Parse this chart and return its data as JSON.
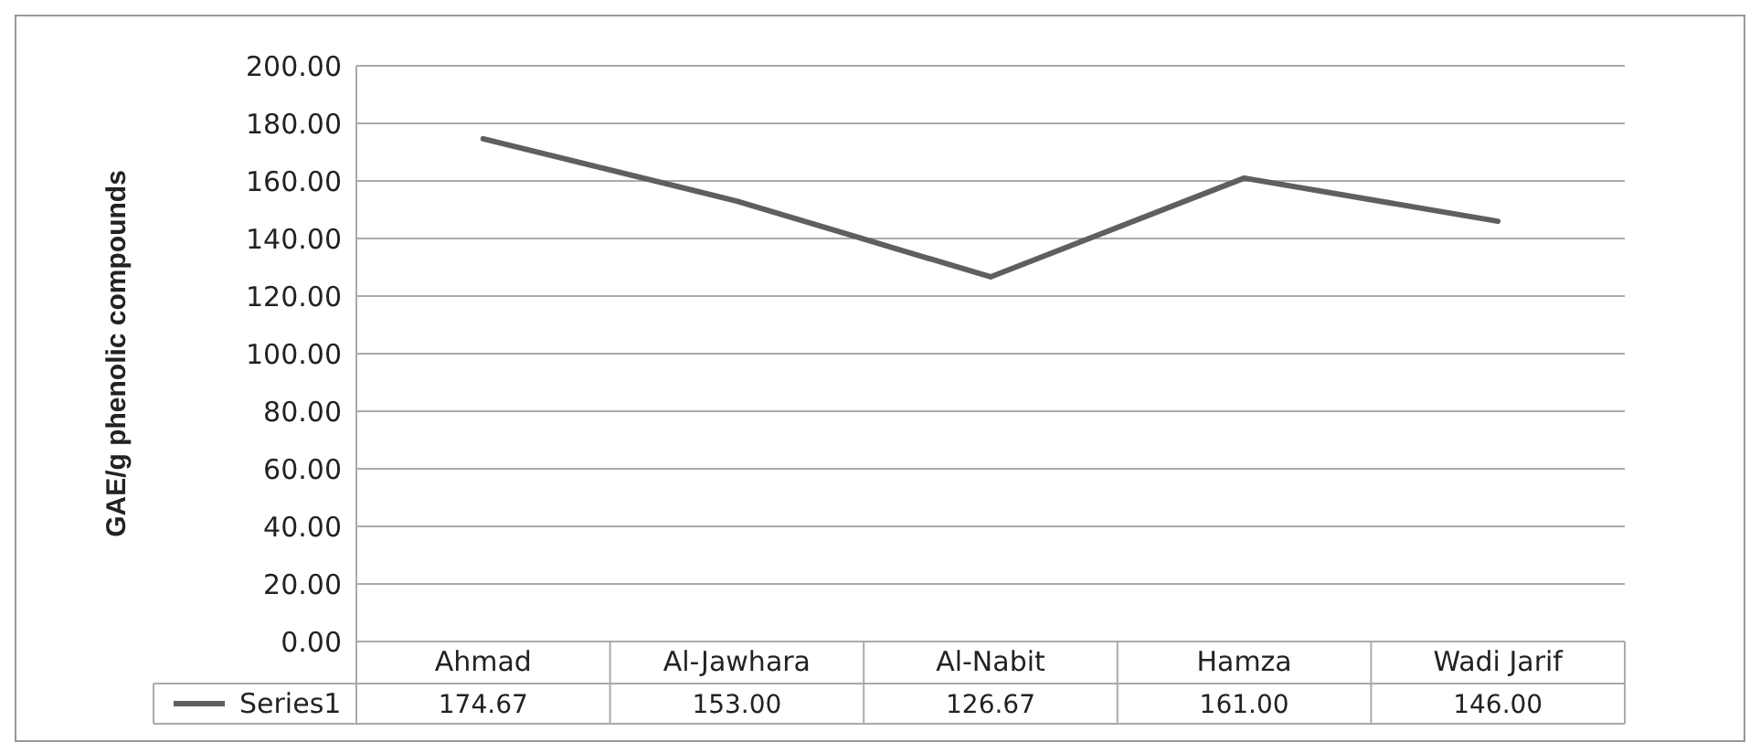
{
  "chart_data": {
    "type": "line",
    "ylabel": "GAE/g  phenolic compounds",
    "categories": [
      "Ahmad",
      "Al-Jawhara",
      "Al-Nabit",
      "Hamza",
      "Wadi Jarif"
    ],
    "series": [
      {
        "name": "Series1",
        "color": "#5f5f5f",
        "values": [
          174.67,
          153.0,
          126.67,
          161.0,
          146.0
        ],
        "value_labels": [
          "174.67",
          "153.00",
          "126.67",
          "161.00",
          "146.00"
        ]
      }
    ],
    "ylim": [
      0,
      200
    ],
    "yticks": [
      {
        "value": 0,
        "label": "0.00"
      },
      {
        "value": 20,
        "label": "20.00"
      },
      {
        "value": 40,
        "label": "40.00"
      },
      {
        "value": 60,
        "label": "60.00"
      },
      {
        "value": 80,
        "label": "80.00"
      },
      {
        "value": 100,
        "label": "100.00"
      },
      {
        "value": 120,
        "label": "120.00"
      },
      {
        "value": 140,
        "label": "140.00"
      },
      {
        "value": 160,
        "label": "160.00"
      },
      {
        "value": 180,
        "label": "180.00"
      },
      {
        "value": 200,
        "label": "200.00"
      }
    ],
    "grid": "y",
    "legend": "bottom",
    "marker": "none",
    "line_style": "solid"
  }
}
